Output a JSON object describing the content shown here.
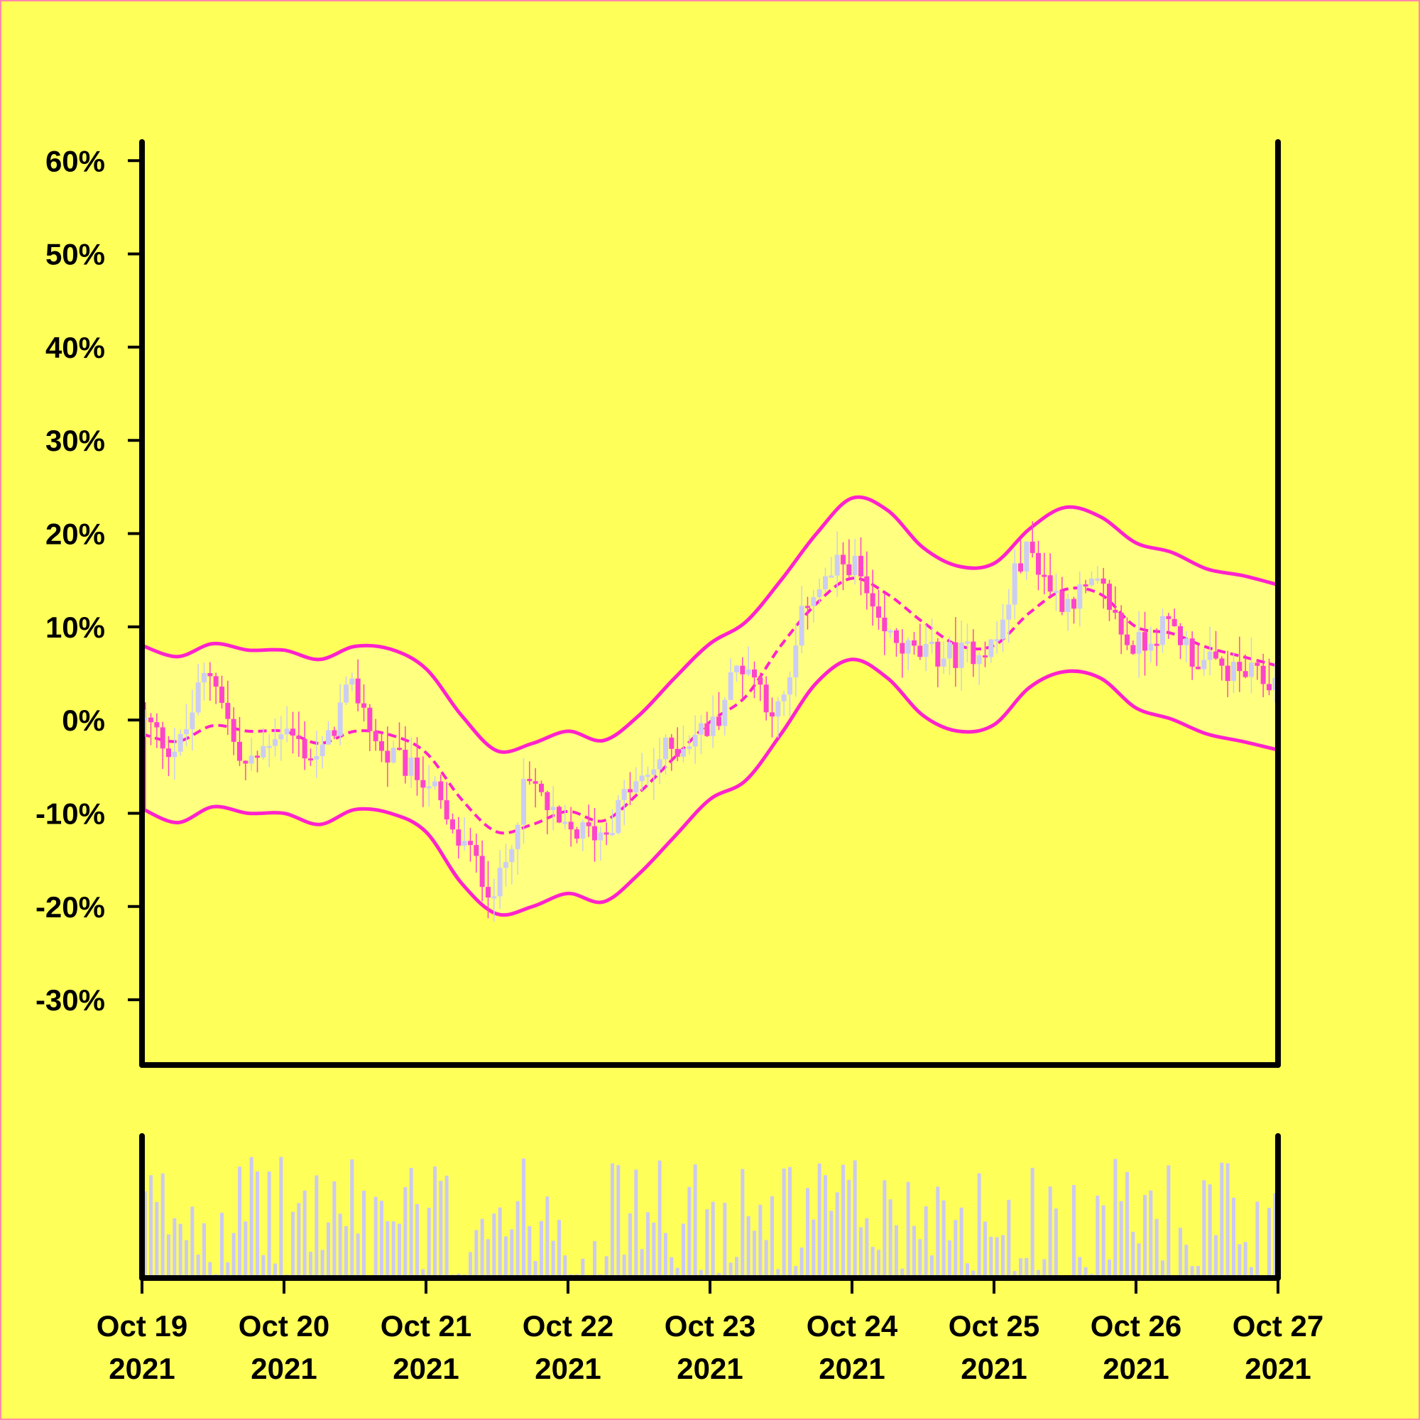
{
  "colors": {
    "background": "#ffff5a",
    "band_fill": "#ffff80",
    "band_line": "#ff22cc",
    "candle_up": "#cccdf5",
    "candle_down": "#ff44cc",
    "volume": "#cccaf0",
    "axis": "#000000"
  },
  "chart_data": {
    "type": "candlestick",
    "title": "",
    "xlabel": "",
    "ylabel": "",
    "y_unit": "percent",
    "ylim": [
      -37,
      62
    ],
    "y_ticks": [
      60,
      50,
      40,
      30,
      20,
      10,
      0,
      -10,
      -20,
      -30
    ],
    "y_tick_labels": [
      "60%",
      "50%",
      "40%",
      "30%",
      "20%",
      "10%",
      "0%",
      "-10%",
      "-20%",
      "-30%"
    ],
    "x_range": [
      "2021-10-19",
      "2021-10-27"
    ],
    "x_ticks": [
      {
        "date": "2021-10-19",
        "line1": "Oct 19",
        "line2": "2021"
      },
      {
        "date": "2021-10-20",
        "line1": "Oct 20",
        "line2": "2021"
      },
      {
        "date": "2021-10-21",
        "line1": "Oct 21",
        "line2": "2021"
      },
      {
        "date": "2021-10-22",
        "line1": "Oct 22",
        "line2": "2021"
      },
      {
        "date": "2021-10-23",
        "line1": "Oct 23",
        "line2": "2021"
      },
      {
        "date": "2021-10-24",
        "line1": "Oct 24",
        "line2": "2021"
      },
      {
        "date": "2021-10-25",
        "line1": "Oct 25",
        "line2": "2021"
      },
      {
        "date": "2021-10-26",
        "line1": "Oct 26",
        "line2": "2021"
      },
      {
        "date": "2021-10-27",
        "line1": "Oct 27",
        "line2": "2021"
      }
    ],
    "bollinger_bands": {
      "x": [
        "2021-10-19 00:00",
        "2021-10-19 06:00",
        "2021-10-19 12:00",
        "2021-10-19 18:00",
        "2021-10-20 00:00",
        "2021-10-20 06:00",
        "2021-10-20 12:00",
        "2021-10-20 18:00",
        "2021-10-21 00:00",
        "2021-10-21 06:00",
        "2021-10-21 12:00",
        "2021-10-21 18:00",
        "2021-10-22 00:00",
        "2021-10-22 06:00",
        "2021-10-22 12:00",
        "2021-10-22 18:00",
        "2021-10-23 00:00",
        "2021-10-23 06:00",
        "2021-10-23 12:00",
        "2021-10-23 18:00",
        "2021-10-24 00:00",
        "2021-10-24 06:00",
        "2021-10-24 12:00",
        "2021-10-24 18:00",
        "2021-10-25 00:00",
        "2021-10-25 06:00",
        "2021-10-25 12:00",
        "2021-10-25 18:00",
        "2021-10-26 00:00",
        "2021-10-26 06:00",
        "2021-10-26 12:00",
        "2021-10-26 18:00",
        "2021-10-27 00:00"
      ],
      "upper": [
        8,
        6.8,
        8.2,
        7.5,
        7.5,
        6.5,
        7.9,
        7.6,
        5.5,
        0.5,
        -3.3,
        -2.5,
        -1.2,
        -2.2,
        0.5,
        4.5,
        8.2,
        10.5,
        15,
        20,
        23.8,
        22.5,
        18.5,
        16.5,
        16.8,
        20.5,
        22.8,
        21.8,
        19,
        18,
        16.2,
        15.5,
        14.5
      ],
      "middle": [
        -1.5,
        -2.3,
        -0.6,
        -1.2,
        -1.2,
        -2.5,
        -1.2,
        -1.6,
        -3.5,
        -8.5,
        -12,
        -11.2,
        -9.8,
        -10.8,
        -7.8,
        -4,
        -0.2,
        2.5,
        8,
        12.5,
        15.2,
        13.5,
        10.5,
        8,
        8,
        11.5,
        14,
        13.5,
        10,
        9.3,
        7.8,
        6.8,
        5.8
      ],
      "lower": [
        -9.5,
        -11,
        -9.3,
        -10,
        -10,
        -11.2,
        -9.6,
        -10,
        -12,
        -17.5,
        -20.8,
        -20,
        -18.6,
        -19.5,
        -16.5,
        -12.5,
        -8.5,
        -6.5,
        -1.5,
        4,
        6.5,
        4.5,
        0.5,
        -1.2,
        -0.5,
        3.5,
        5.2,
        4.5,
        1.3,
        0.1,
        -1.5,
        -2.3,
        -3.2
      ]
    },
    "price_path": {
      "x": [
        "2021-10-19 00:00",
        "2021-10-19 06:00",
        "2021-10-19 12:00",
        "2021-10-19 18:00",
        "2021-10-20 00:00",
        "2021-10-20 06:00",
        "2021-10-20 12:00",
        "2021-10-20 18:00",
        "2021-10-21 00:00",
        "2021-10-21 06:00",
        "2021-10-21 12:00",
        "2021-10-21 18:00",
        "2021-10-22 00:00",
        "2021-10-22 06:00",
        "2021-10-22 12:00",
        "2021-10-22 18:00",
        "2021-10-23 00:00",
        "2021-10-23 06:00",
        "2021-10-23 12:00",
        "2021-10-23 18:00",
        "2021-10-24 00:00",
        "2021-10-24 06:00",
        "2021-10-24 12:00",
        "2021-10-24 18:00",
        "2021-10-25 00:00",
        "2021-10-25 06:00",
        "2021-10-25 12:00",
        "2021-10-25 18:00",
        "2021-10-26 00:00",
        "2021-10-26 06:00",
        "2021-10-26 12:00",
        "2021-10-26 18:00",
        "2021-10-27 00:00"
      ],
      "close": [
        0,
        -3,
        5,
        -5,
        -1,
        -4,
        3,
        -4,
        -6,
        -13,
        -18,
        -7,
        -12,
        -12,
        -7,
        -3,
        -1,
        6,
        1,
        14,
        17,
        9,
        7,
        7,
        8,
        18,
        13,
        14,
        8,
        10,
        6,
        5,
        4
      ]
    },
    "volume": {
      "ylim": [
        0,
        100
      ],
      "note_axis": "hidden"
    }
  }
}
